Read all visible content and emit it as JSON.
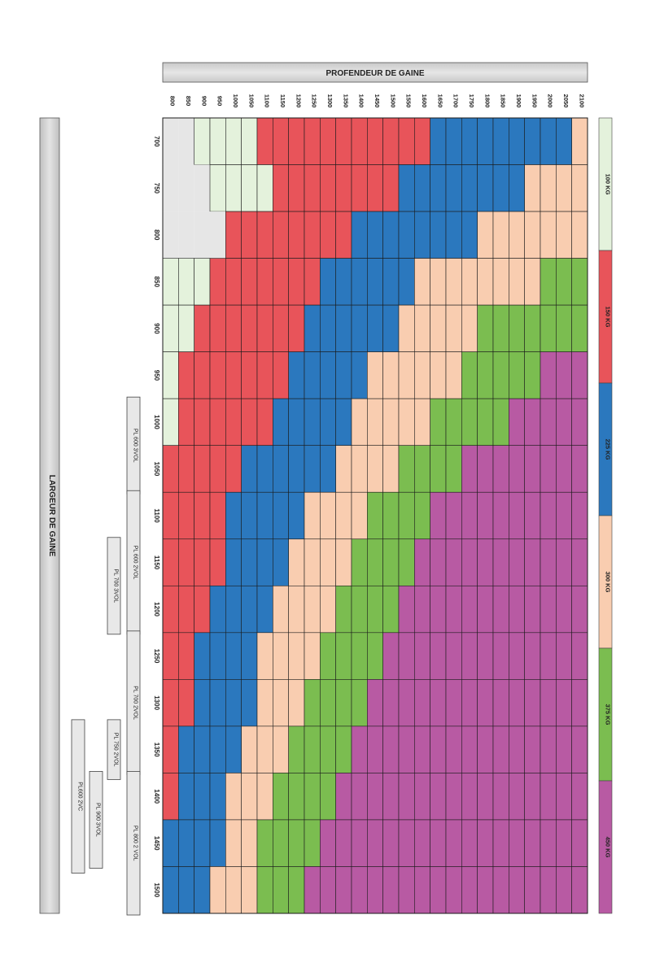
{
  "header": {
    "title": "PROFENDEUR DE GAINE"
  },
  "side": {
    "title": "LARGEUR DE GAINE"
  },
  "chart_data": {
    "type": "heatmap",
    "title": "",
    "xlabel": "PROFENDEUR DE GAINE",
    "ylabel": "LARGEUR DE GAINE",
    "profondeurs": [
      "800",
      "850",
      "900",
      "950",
      "1000",
      "1050",
      "1100",
      "1150",
      "1200",
      "1250",
      "1300",
      "1350",
      "1400",
      "1450",
      "1500",
      "1550",
      "1600",
      "1650",
      "1700",
      "1750",
      "1800",
      "1850",
      "1900",
      "1950",
      "2000",
      "2050",
      "2100"
    ],
    "largeurs": [
      "700",
      "750",
      "800",
      "850",
      "900",
      "950",
      "1000",
      "1050",
      "1100",
      "1150",
      "1200",
      "1250",
      "1300",
      "1350",
      "1400",
      "1450",
      "1500"
    ],
    "categories": [
      {
        "key": "100",
        "label": "100 KG",
        "color": "#e4f2dc"
      },
      {
        "key": "150",
        "label": "150 KG",
        "color": "#e8545a"
      },
      {
        "key": "225",
        "label": "225 KG",
        "color": "#2b78be"
      },
      {
        "key": "300",
        "label": "300 KG",
        "color": "#f9cdb0"
      },
      {
        "key": "375",
        "label": "375 KG",
        "color": "#7bbd50"
      },
      {
        "key": "450",
        "label": "450 KG",
        "color": "#b85aa3"
      }
    ],
    "none_color": "#e6e6e6",
    "grid": true,
    "cells_by_largeur": [
      [
        "-",
        "-",
        "100",
        "100",
        "100",
        "100",
        "150",
        "150",
        "150",
        "150",
        "150",
        "150",
        "150",
        "150",
        "150",
        "150",
        "150",
        "225",
        "225",
        "225",
        "225",
        "225",
        "225",
        "225",
        "225",
        "225",
        "300"
      ],
      [
        "-",
        "-",
        "-",
        "100",
        "100",
        "100",
        "100",
        "150",
        "150",
        "150",
        "150",
        "150",
        "150",
        "150",
        "150",
        "225",
        "225",
        "225",
        "225",
        "225",
        "225",
        "225",
        "225",
        "300",
        "300",
        "300",
        "300"
      ],
      [
        "-",
        "-",
        "-",
        "-",
        "150",
        "150",
        "150",
        "150",
        "150",
        "150",
        "150",
        "150",
        "225",
        "225",
        "225",
        "225",
        "225",
        "225",
        "225",
        "225",
        "300",
        "300",
        "300",
        "300",
        "300",
        "300",
        "300"
      ],
      [
        "100",
        "100",
        "100",
        "150",
        "150",
        "150",
        "150",
        "150",
        "150",
        "150",
        "225",
        "225",
        "225",
        "225",
        "225",
        "225",
        "300",
        "300",
        "300",
        "300",
        "300",
        "300",
        "300",
        "300",
        "375",
        "375",
        "375"
      ],
      [
        "100",
        "100",
        "150",
        "150",
        "150",
        "150",
        "150",
        "150",
        "150",
        "225",
        "225",
        "225",
        "225",
        "225",
        "225",
        "300",
        "300",
        "300",
        "300",
        "300",
        "375",
        "375",
        "375",
        "375",
        "375",
        "375",
        "375"
      ],
      [
        "100",
        "150",
        "150",
        "150",
        "150",
        "150",
        "150",
        "150",
        "225",
        "225",
        "225",
        "225",
        "225",
        "300",
        "300",
        "300",
        "300",
        "300",
        "300",
        "375",
        "375",
        "375",
        "375",
        "375",
        "450",
        "450",
        "450"
      ],
      [
        "100",
        "150",
        "150",
        "150",
        "150",
        "150",
        "150",
        "225",
        "225",
        "225",
        "225",
        "225",
        "300",
        "300",
        "300",
        "300",
        "300",
        "375",
        "375",
        "375",
        "375",
        "375",
        "450",
        "450",
        "450",
        "450",
        "450"
      ],
      [
        "150",
        "150",
        "150",
        "150",
        "150",
        "225",
        "225",
        "225",
        "225",
        "225",
        "225",
        "300",
        "300",
        "300",
        "300",
        "375",
        "375",
        "375",
        "375",
        "450",
        "450",
        "450",
        "450",
        "450",
        "450",
        "450",
        "450"
      ],
      [
        "150",
        "150",
        "150",
        "150",
        "225",
        "225",
        "225",
        "225",
        "225",
        "300",
        "300",
        "300",
        "300",
        "375",
        "375",
        "375",
        "375",
        "450",
        "450",
        "450",
        "450",
        "450",
        "450",
        "450",
        "450",
        "450",
        "450"
      ],
      [
        "150",
        "150",
        "150",
        "150",
        "225",
        "225",
        "225",
        "225",
        "300",
        "300",
        "300",
        "300",
        "375",
        "375",
        "375",
        "375",
        "450",
        "450",
        "450",
        "450",
        "450",
        "450",
        "450",
        "450",
        "450",
        "450",
        "450"
      ],
      [
        "150",
        "150",
        "150",
        "225",
        "225",
        "225",
        "225",
        "300",
        "300",
        "300",
        "300",
        "375",
        "375",
        "375",
        "375",
        "450",
        "450",
        "450",
        "450",
        "450",
        "450",
        "450",
        "450",
        "450",
        "450",
        "450",
        "450"
      ],
      [
        "150",
        "150",
        "225",
        "225",
        "225",
        "225",
        "300",
        "300",
        "300",
        "300",
        "375",
        "375",
        "375",
        "375",
        "450",
        "450",
        "450",
        "450",
        "450",
        "450",
        "450",
        "450",
        "450",
        "450",
        "450",
        "450",
        "450"
      ],
      [
        "150",
        "150",
        "225",
        "225",
        "225",
        "225",
        "300",
        "300",
        "300",
        "375",
        "375",
        "375",
        "375",
        "450",
        "450",
        "450",
        "450",
        "450",
        "450",
        "450",
        "450",
        "450",
        "450",
        "450",
        "450",
        "450",
        "450"
      ],
      [
        "150",
        "225",
        "225",
        "225",
        "225",
        "300",
        "300",
        "300",
        "375",
        "375",
        "375",
        "375",
        "450",
        "450",
        "450",
        "450",
        "450",
        "450",
        "450",
        "450",
        "450",
        "450",
        "450",
        "450",
        "450",
        "450",
        "450"
      ],
      [
        "150",
        "225",
        "225",
        "225",
        "300",
        "300",
        "300",
        "375",
        "375",
        "375",
        "375",
        "450",
        "450",
        "450",
        "450",
        "450",
        "450",
        "450",
        "450",
        "450",
        "450",
        "450",
        "450",
        "450",
        "450",
        "450",
        "450"
      ],
      [
        "225",
        "225",
        "225",
        "225",
        "300",
        "300",
        "375",
        "375",
        "375",
        "375",
        "450",
        "450",
        "450",
        "450",
        "450",
        "450",
        "450",
        "450",
        "450",
        "450",
        "450",
        "450",
        "450",
        "450",
        "450",
        "450",
        "450"
      ],
      [
        "225",
        "225",
        "225",
        "300",
        "300",
        "300",
        "375",
        "375",
        "375",
        "450",
        "450",
        "450",
        "450",
        "450",
        "450",
        "450",
        "450",
        "450",
        "450",
        "450",
        "450",
        "450",
        "450",
        "450",
        "450",
        "450",
        "450"
      ]
    ],
    "annotations": [
      {
        "label": "PL 600 3VOL",
        "from": "1000",
        "to": "1050"
      },
      {
        "label": "PL 600 2VOL",
        "from": "1100",
        "to": "1200"
      },
      {
        "label": "PL 700 3VOL",
        "from": "1150",
        "to": "1200"
      },
      {
        "label": "PL 700 2VOL",
        "from": "1250",
        "to": "1350"
      },
      {
        "label": "PL 750 2VOL",
        "from": "1350",
        "to": "1350"
      },
      {
        "label": "PL 800 2 VOL",
        "from": "1400",
        "to": "1500"
      },
      {
        "label": "PL600 2VC",
        "from": "1350",
        "to": "1450"
      },
      {
        "label": "PL 900 3VOL",
        "from": "1400",
        "to": "1450"
      }
    ]
  }
}
